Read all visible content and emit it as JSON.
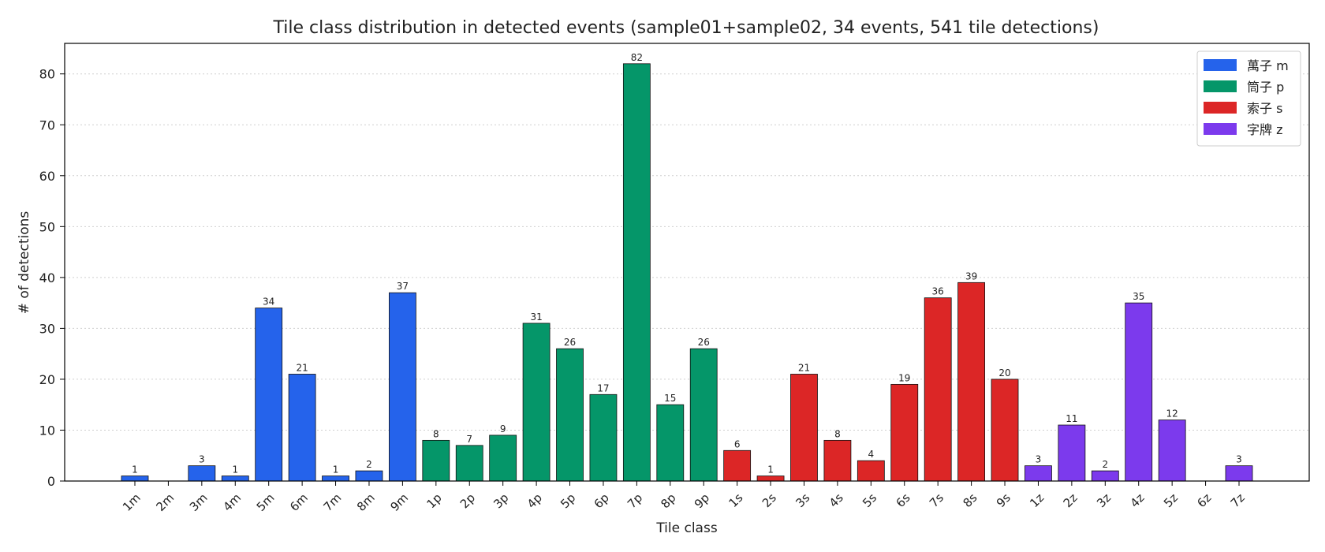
{
  "chart_data": {
    "type": "bar",
    "title": "Tile class distribution in detected events (sample01+sample02, 34 events, 541 tile detections)",
    "xlabel": "Tile class",
    "ylabel": "# of detections",
    "ylim": [
      0,
      86
    ],
    "yticks": [
      0,
      10,
      20,
      30,
      40,
      50,
      60,
      70,
      80
    ],
    "grid": "y-dotted",
    "legend_placement": "top-right",
    "categories": [
      "1m",
      "2m",
      "3m",
      "4m",
      "5m",
      "6m",
      "7m",
      "8m",
      "9m",
      "1p",
      "2p",
      "3p",
      "4p",
      "5p",
      "6p",
      "7p",
      "8p",
      "9p",
      "1s",
      "2s",
      "3s",
      "4s",
      "5s",
      "6s",
      "7s",
      "8s",
      "9s",
      "1z",
      "2z",
      "3z",
      "4z",
      "5z",
      "6z",
      "7z"
    ],
    "values": [
      1,
      0,
      3,
      1,
      34,
      21,
      1,
      2,
      37,
      8,
      7,
      9,
      31,
      26,
      17,
      82,
      15,
      26,
      6,
      1,
      21,
      8,
      4,
      19,
      36,
      39,
      20,
      3,
      11,
      2,
      35,
      12,
      0,
      3
    ],
    "groups": [
      "m",
      "m",
      "m",
      "m",
      "m",
      "m",
      "m",
      "m",
      "m",
      "p",
      "p",
      "p",
      "p",
      "p",
      "p",
      "p",
      "p",
      "p",
      "s",
      "s",
      "s",
      "s",
      "s",
      "s",
      "s",
      "s",
      "s",
      "z",
      "z",
      "z",
      "z",
      "z",
      "z",
      "z"
    ],
    "legend": [
      {
        "key": "m",
        "label": "萬子 m",
        "color": "#2563eb"
      },
      {
        "key": "p",
        "label": "筒子 p",
        "color": "#059669"
      },
      {
        "key": "s",
        "label": "索子 s",
        "color": "#dc2626"
      },
      {
        "key": "z",
        "label": "字牌 z",
        "color": "#7c3aed"
      }
    ]
  }
}
